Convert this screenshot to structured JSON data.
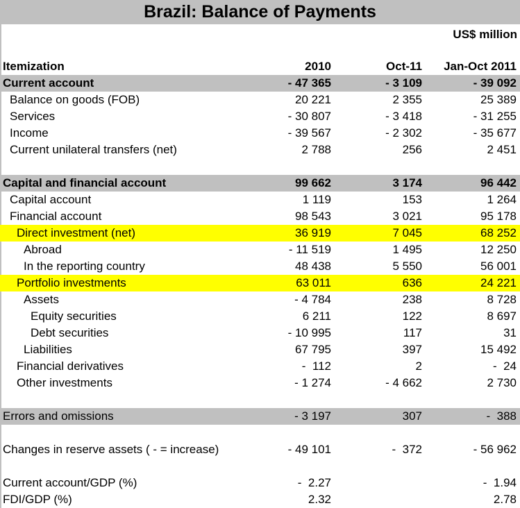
{
  "title": "Brazil: Balance of Payments",
  "units": "US$ million",
  "header": {
    "label": "Itemization",
    "col1": "2010",
    "col2": "Oct-11",
    "col3": "Jan-Oct 2011"
  },
  "rows": [
    {
      "label": "Current account",
      "v1": "- 47 365",
      "v2": "- 3 109",
      "v3": "- 39 092"
    },
    {
      "label": "Balance on goods (FOB)",
      "v1": "20 221",
      "v2": "2 355",
      "v3": "25 389"
    },
    {
      "label": "Services",
      "v1": "- 30 807",
      "v2": "- 3 418",
      "v3": "- 31 255"
    },
    {
      "label": "Income",
      "v1": "- 39 567",
      "v2": "- 2 302",
      "v3": "- 35 677"
    },
    {
      "label": "Current unilateral transfers (net)",
      "v1": "2 788",
      "v2": "256",
      "v3": "2 451"
    },
    {
      "label": "Capital and financial account",
      "v1": "99 662",
      "v2": "3 174",
      "v3": "96 442"
    },
    {
      "label": "Capital account",
      "v1": "1 119",
      "v2": "153",
      "v3": "1 264"
    },
    {
      "label": "Financial account",
      "v1": "98 543",
      "v2": "3 021",
      "v3": "95 178"
    },
    {
      "label": "Direct investment (net)",
      "v1": "36 919",
      "v2": "7 045",
      "v3": "68 252"
    },
    {
      "label": "Abroad",
      "v1": "- 11 519",
      "v2": "1 495",
      "v3": "12 250"
    },
    {
      "label": "In the reporting country",
      "v1": "48 438",
      "v2": "5 550",
      "v3": "56 001"
    },
    {
      "label": "Portfolio investments",
      "v1": "63 011",
      "v2": "636",
      "v3": "24 221"
    },
    {
      "label": "Assets",
      "v1": "- 4 784",
      "v2": "238",
      "v3": "8 728"
    },
    {
      "label": "Equity securities",
      "v1": "6 211",
      "v2": "122",
      "v3": "8 697"
    },
    {
      "label": "Debt securities",
      "v1": "- 10 995",
      "v2": "117",
      "v3": "31"
    },
    {
      "label": "Liabilities",
      "v1": "67 795",
      "v2": "397",
      "v3": "15 492"
    },
    {
      "label": "Financial derivatives",
      "v1": "-  112",
      "v2": "2",
      "v3": "-  24"
    },
    {
      "label": "Other investments",
      "v1": "- 1 274",
      "v2": "- 4 662",
      "v3": "2 730"
    },
    {
      "label": "Errors and omissions",
      "v1": "- 3 197",
      "v2": "307",
      "v3": "-  388"
    },
    {
      "label": "Changes in reserve assets ( - = increase)",
      "v1": "- 49 101",
      "v2": "-  372",
      "v3": "- 56 962"
    },
    {
      "label": "Current account/GDP (%)",
      "v1": "-  2.27",
      "v2": "",
      "v3": "-  1.94"
    },
    {
      "label": "FDI/GDP (%)",
      "v1": "2.32",
      "v2": "",
      "v3": "2.78"
    }
  ],
  "colors": {
    "header_gray": "#c0c0c0",
    "highlight_yellow": "#ffff00"
  }
}
